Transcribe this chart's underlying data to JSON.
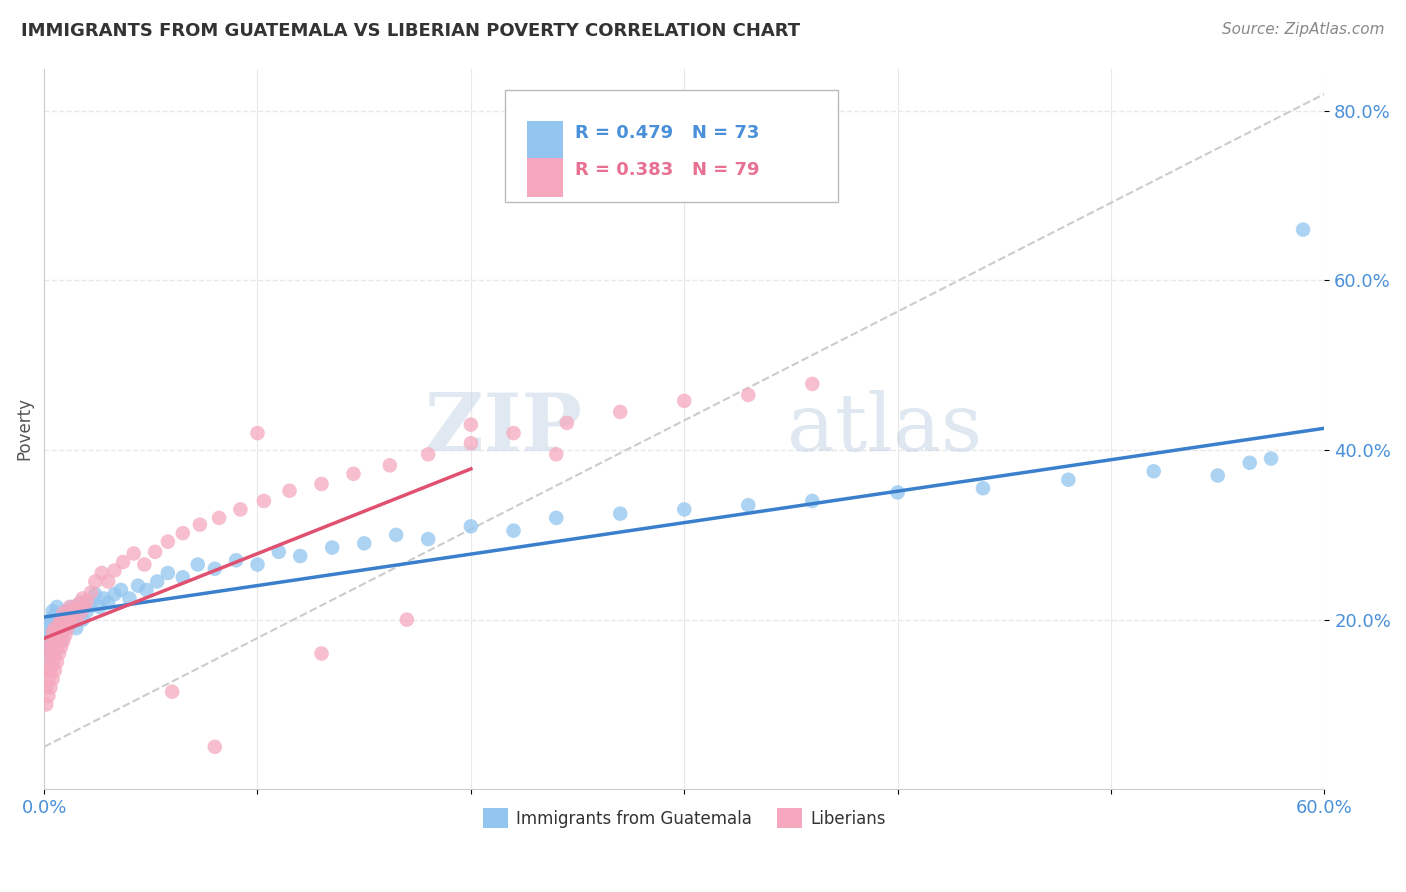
{
  "title": "IMMIGRANTS FROM GUATEMALA VS LIBERIAN POVERTY CORRELATION CHART",
  "source": "Source: ZipAtlas.com",
  "ylabel": "Poverty",
  "xlim": [
    0.0,
    0.6
  ],
  "ylim": [
    0.0,
    0.85
  ],
  "xticks": [
    0.0,
    0.1,
    0.2,
    0.3,
    0.4,
    0.5,
    0.6
  ],
  "xticklabels": [
    "0.0%",
    "",
    "",
    "",
    "",
    "",
    "60.0%"
  ],
  "yticks": [
    0.2,
    0.4,
    0.6,
    0.8
  ],
  "yticklabels": [
    "20.0%",
    "40.0%",
    "60.0%",
    "80.0%"
  ],
  "blue_color": "#92C5F0",
  "pink_color": "#F5A8BE",
  "blue_line_color": "#3A7FCC",
  "pink_line_color": "#E05070",
  "gray_line_color": "#CCCCCC",
  "legend_r_blue": "R = 0.479",
  "legend_n_blue": "N = 73",
  "legend_r_pink": "R = 0.383",
  "legend_n_pink": "N = 79",
  "legend_label_blue": "Immigrants from Guatemala",
  "legend_label_pink": "Liberians",
  "watermark_zip": "ZIP",
  "watermark_atlas": "atlas",
  "bg_color": "#FFFFFF",
  "grid_color": "#E8E8E8",
  "blue_x": [
    0.001,
    0.001,
    0.002,
    0.002,
    0.002,
    0.003,
    0.003,
    0.003,
    0.004,
    0.004,
    0.004,
    0.005,
    0.005,
    0.005,
    0.006,
    0.006,
    0.006,
    0.007,
    0.007,
    0.008,
    0.008,
    0.009,
    0.009,
    0.01,
    0.01,
    0.011,
    0.012,
    0.013,
    0.014,
    0.015,
    0.016,
    0.017,
    0.018,
    0.019,
    0.02,
    0.022,
    0.024,
    0.026,
    0.028,
    0.03,
    0.033,
    0.036,
    0.04,
    0.044,
    0.048,
    0.053,
    0.058,
    0.065,
    0.072,
    0.08,
    0.09,
    0.1,
    0.11,
    0.12,
    0.135,
    0.15,
    0.165,
    0.18,
    0.2,
    0.22,
    0.24,
    0.27,
    0.3,
    0.33,
    0.36,
    0.4,
    0.44,
    0.48,
    0.52,
    0.55,
    0.565,
    0.575,
    0.59
  ],
  "blue_y": [
    0.165,
    0.18,
    0.155,
    0.175,
    0.195,
    0.16,
    0.18,
    0.2,
    0.17,
    0.19,
    0.21,
    0.165,
    0.185,
    0.205,
    0.175,
    0.195,
    0.215,
    0.18,
    0.2,
    0.175,
    0.195,
    0.185,
    0.205,
    0.19,
    0.21,
    0.195,
    0.2,
    0.215,
    0.205,
    0.19,
    0.21,
    0.22,
    0.2,
    0.215,
    0.21,
    0.22,
    0.23,
    0.215,
    0.225,
    0.22,
    0.23,
    0.235,
    0.225,
    0.24,
    0.235,
    0.245,
    0.255,
    0.25,
    0.265,
    0.26,
    0.27,
    0.265,
    0.28,
    0.275,
    0.285,
    0.29,
    0.3,
    0.295,
    0.31,
    0.305,
    0.32,
    0.325,
    0.33,
    0.335,
    0.34,
    0.35,
    0.355,
    0.365,
    0.375,
    0.37,
    0.385,
    0.39,
    0.66
  ],
  "pink_x": [
    0.001,
    0.001,
    0.001,
    0.002,
    0.002,
    0.002,
    0.002,
    0.003,
    0.003,
    0.003,
    0.003,
    0.004,
    0.004,
    0.004,
    0.004,
    0.005,
    0.005,
    0.005,
    0.005,
    0.006,
    0.006,
    0.006,
    0.007,
    0.007,
    0.007,
    0.008,
    0.008,
    0.008,
    0.009,
    0.009,
    0.009,
    0.01,
    0.01,
    0.011,
    0.011,
    0.012,
    0.012,
    0.013,
    0.014,
    0.015,
    0.016,
    0.017,
    0.018,
    0.019,
    0.02,
    0.022,
    0.024,
    0.027,
    0.03,
    0.033,
    0.037,
    0.042,
    0.047,
    0.052,
    0.058,
    0.065,
    0.073,
    0.082,
    0.092,
    0.103,
    0.115,
    0.13,
    0.145,
    0.162,
    0.18,
    0.2,
    0.22,
    0.245,
    0.27,
    0.3,
    0.33,
    0.36,
    0.1,
    0.2,
    0.24,
    0.06,
    0.13,
    0.17,
    0.08
  ],
  "pink_y": [
    0.1,
    0.12,
    0.14,
    0.11,
    0.13,
    0.15,
    0.165,
    0.12,
    0.14,
    0.16,
    0.175,
    0.13,
    0.15,
    0.168,
    0.185,
    0.14,
    0.158,
    0.175,
    0.19,
    0.15,
    0.168,
    0.185,
    0.16,
    0.178,
    0.195,
    0.168,
    0.185,
    0.2,
    0.175,
    0.192,
    0.208,
    0.182,
    0.198,
    0.19,
    0.208,
    0.198,
    0.215,
    0.205,
    0.212,
    0.2,
    0.218,
    0.208,
    0.225,
    0.215,
    0.222,
    0.232,
    0.245,
    0.255,
    0.245,
    0.258,
    0.268,
    0.278,
    0.265,
    0.28,
    0.292,
    0.302,
    0.312,
    0.32,
    0.33,
    0.34,
    0.352,
    0.36,
    0.372,
    0.382,
    0.395,
    0.408,
    0.42,
    0.432,
    0.445,
    0.458,
    0.465,
    0.478,
    0.42,
    0.43,
    0.395,
    0.115,
    0.16,
    0.2,
    0.05
  ]
}
